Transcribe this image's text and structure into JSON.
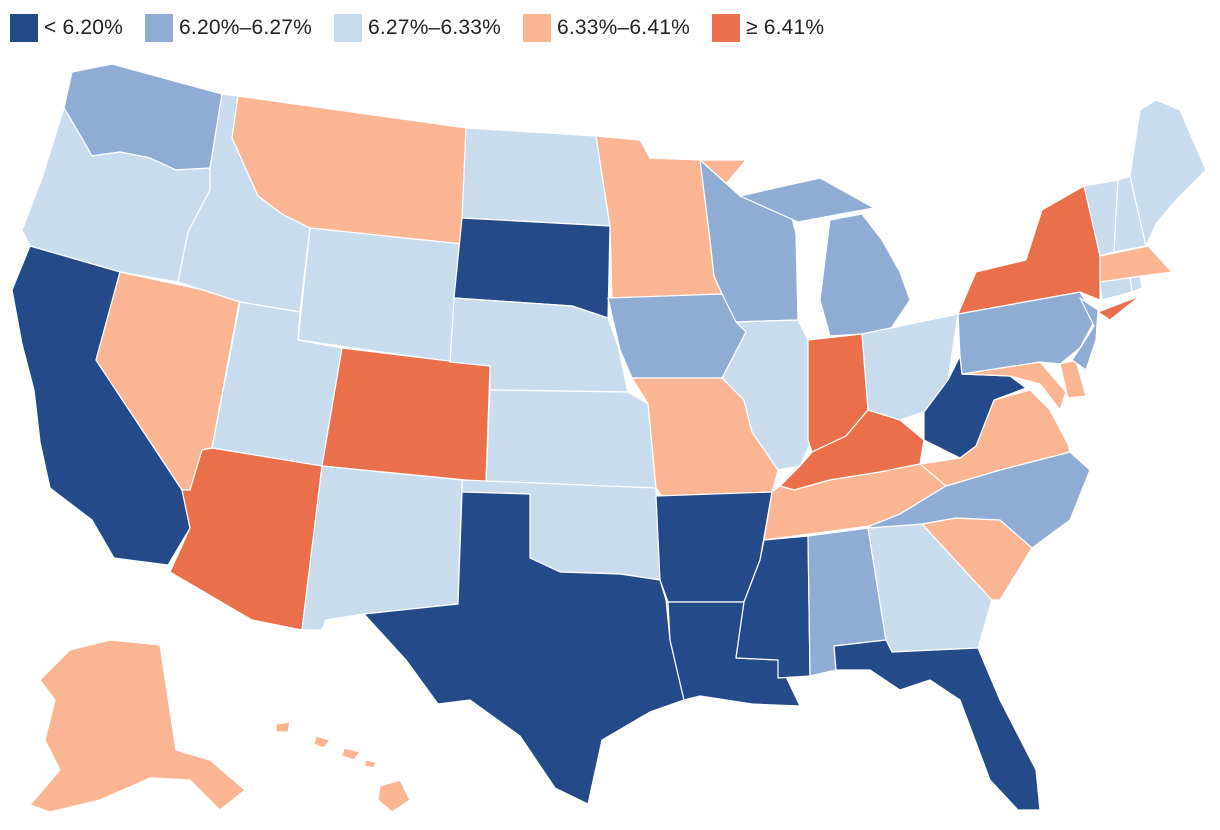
{
  "legend": {
    "bins": [
      {
        "id": "b1",
        "label": "< 6.20%",
        "color": "#244a8a"
      },
      {
        "id": "b2",
        "label": "6.20%–6.27%",
        "color": "#8fadd4"
      },
      {
        "id": "b3",
        "label": "6.27%–6.33%",
        "color": "#c9dcee"
      },
      {
        "id": "b4",
        "label": "6.33%–6.41%",
        "color": "#fbb592"
      },
      {
        "id": "b5",
        "label": "≥ 6.41%",
        "color": "#e9704b"
      }
    ]
  },
  "states": {
    "WA": "b2",
    "OR": "b3",
    "CA": "b1",
    "NV": "b4",
    "ID": "b3",
    "MT": "b4",
    "WY": "b3",
    "UT": "b3",
    "AZ": "b5",
    "CO": "b5",
    "NM": "b3",
    "ND": "b3",
    "SD": "b1",
    "NE": "b3",
    "KS": "b3",
    "OK": "b3",
    "TX": "b1",
    "MN": "b4",
    "IA": "b2",
    "MO": "b4",
    "AR": "b1",
    "LA": "b1",
    "WI": "b2",
    "IL": "b3",
    "MI": "b2",
    "IN": "b5",
    "OH": "b3",
    "KY": "b5",
    "TN": "b4",
    "MS": "b1",
    "AL": "b2",
    "GA": "b3",
    "FL": "b1",
    "SC": "b4",
    "NC": "b2",
    "VA": "b4",
    "WV": "b1",
    "MD": "b4",
    "DE": "b4",
    "PA": "b2",
    "NJ": "b2",
    "NY": "b5",
    "CT": "b3",
    "RI": "b3",
    "MA": "b4",
    "VT": "b3",
    "NH": "b3",
    "ME": "b3",
    "AK": "b4",
    "HI": "b4"
  }
}
